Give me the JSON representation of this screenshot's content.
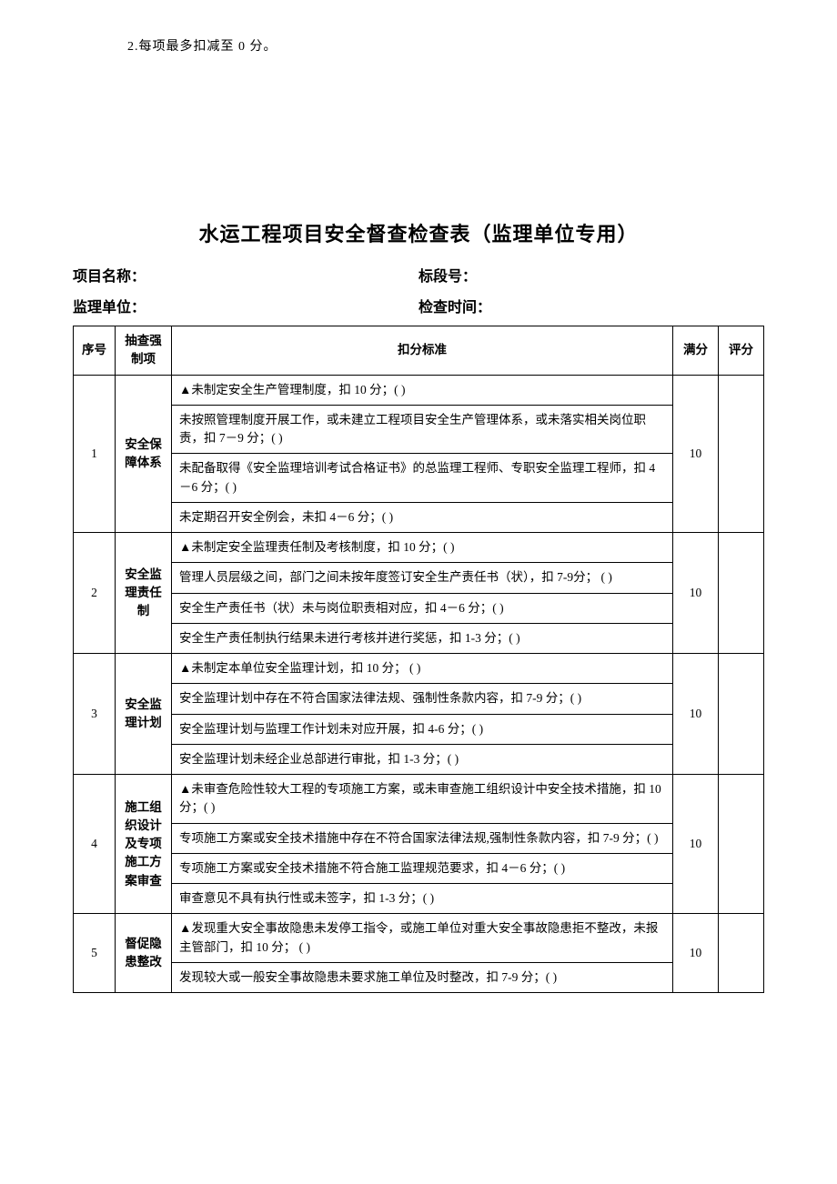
{
  "note": "2.每项最多扣减至 0 分。",
  "title": "水运工程项目安全督查检查表（监理单位专用）",
  "meta": {
    "projectLabel": "项目名称：",
    "sectionLabel": "标段号：",
    "unitLabel": "监理单位：",
    "timeLabel": "检查时间："
  },
  "headers": {
    "seq": "序号",
    "category": "抽查强制项",
    "criteria": "扣分标准",
    "fullScore": "满分",
    "score": "评分"
  },
  "rows": [
    {
      "seq": "1",
      "category": "安全保障体系",
      "fullScore": "10",
      "criteria": [
        "▲未制定安全生产管理制度，扣 10 分；( )",
        "未按照管理制度开展工作，或未建立工程项目安全生产管理体系，或未落实相关岗位职责，扣 7－9 分；( )",
        "未配备取得《安全监理培训考试合格证书》的总监理工程师、专职安全监理工程师，扣 4－6 分；( )",
        "未定期召开安全例会，未扣 4－6 分；( )"
      ]
    },
    {
      "seq": "2",
      "category": "安全监理责任制",
      "fullScore": "10",
      "criteria": [
        "▲未制定安全监理责任制及考核制度，扣 10 分；( )",
        "管理人员层级之间，部门之间未按年度签订安全生产责任书（状），扣 7-9分；   ( )",
        "安全生产责任书（状）未与岗位职责相对应，扣 4－6 分；( )",
        "安全生产责任制执行结果未进行考核并进行奖惩，扣 1-3 分；( )"
      ]
    },
    {
      "seq": "3",
      "category": "安全监理计划",
      "fullScore": "10",
      "criteria": [
        "▲未制定本单位安全监理计划，扣 10 分；   ( )",
        "安全监理计划中存在不符合国家法律法规、强制性条款内容，扣 7-9 分；( )",
        "安全监理计划与监理工作计划未对应开展，扣 4-6 分；( )",
        "安全监理计划未经企业总部进行审批，扣 1-3 分；( )"
      ]
    },
    {
      "seq": "4",
      "category": "施工组织设计及专项施工方案审查",
      "fullScore": "10",
      "criteria": [
        "▲未审查危险性较大工程的专项施工方案，或未审查施工组织设计中安全技术措施，扣 10 分；( )",
        "专项施工方案或安全技术措施中存在不符合国家法律法规,强制性条款内容，扣 7-9 分；( )",
        "专项施工方案或安全技术措施不符合施工监理规范要求，扣 4－6 分；( )",
        "审查意见不具有执行性或未签字，扣 1-3 分；( )"
      ]
    },
    {
      "seq": "5",
      "category": "督促隐患整改",
      "fullScore": "10",
      "criteria": [
        "▲发现重大安全事故隐患未发停工指令，或施工单位对重大安全事故隐患拒不整改，未报主管部门，扣 10 分；   ( )",
        "发现较大或一般安全事故隐患未要求施工单位及时整改，扣 7-9 分；( )"
      ]
    }
  ]
}
